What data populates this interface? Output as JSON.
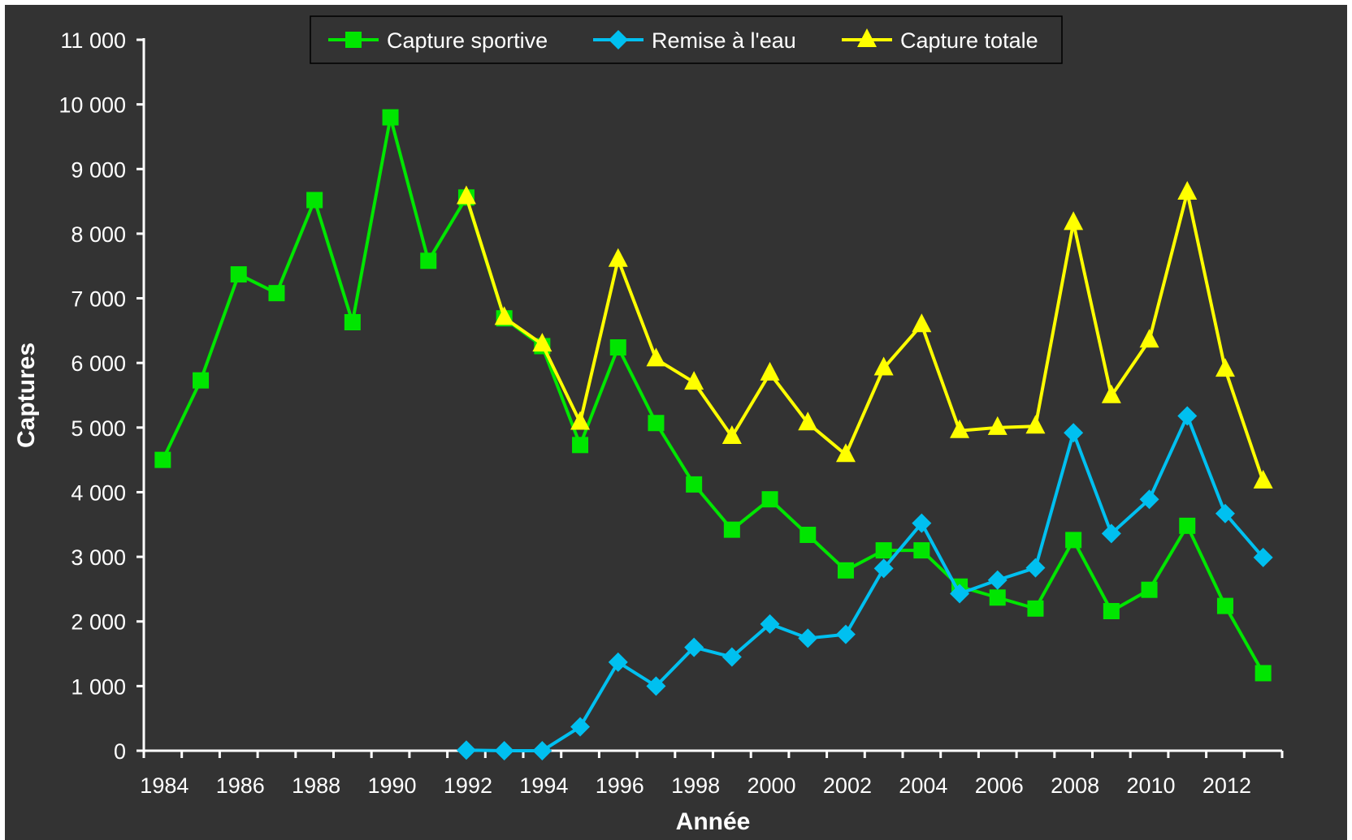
{
  "chart_data": {
    "type": "line",
    "title": "",
    "xlabel": "Année",
    "ylabel": "Captures",
    "xlim": [
      1983.5,
      2013.5
    ],
    "ylim": [
      0,
      11000
    ],
    "x_ticks": [
      1984,
      1986,
      1988,
      1990,
      1992,
      1994,
      1996,
      1998,
      2000,
      2002,
      2004,
      2006,
      2008,
      2010,
      2012
    ],
    "x_tick_labels": [
      "1984",
      "1986",
      "1988",
      "1990",
      "1992",
      "1994",
      "1996",
      "1998",
      "2000",
      "2002",
      "2004",
      "2006",
      "2008",
      "2010",
      "2012"
    ],
    "y_ticks": [
      0,
      1000,
      2000,
      3000,
      4000,
      5000,
      6000,
      7000,
      8000,
      9000,
      10000,
      11000
    ],
    "y_tick_labels": [
      "0",
      "1 000",
      "2 000",
      "3 000",
      "4 000",
      "5 000",
      "6 000",
      "7 000",
      "8 000",
      "9 000",
      "10 000",
      "11 000"
    ],
    "grid": false,
    "legend_position": "top-center",
    "background_color": "#333333",
    "axis_color": "#ffffff",
    "series": [
      {
        "name": "Capture sportive",
        "color": "#00e600",
        "marker": "square",
        "points": [
          [
            1984,
            4500
          ],
          [
            1985,
            5730
          ],
          [
            1986,
            7370
          ],
          [
            1987,
            7080
          ],
          [
            1988,
            8520
          ],
          [
            1989,
            6630
          ],
          [
            1990,
            9800
          ],
          [
            1991,
            7580
          ],
          [
            1992,
            8560
          ],
          [
            1993,
            6690
          ],
          [
            1994,
            6260
          ],
          [
            1995,
            4730
          ],
          [
            1996,
            6240
          ],
          [
            1997,
            5070
          ],
          [
            1998,
            4120
          ],
          [
            1999,
            3420
          ],
          [
            2000,
            3890
          ],
          [
            2001,
            3340
          ],
          [
            2002,
            2790
          ],
          [
            2003,
            3100
          ],
          [
            2004,
            3100
          ],
          [
            2005,
            2540
          ],
          [
            2006,
            2370
          ],
          [
            2007,
            2200
          ],
          [
            2008,
            3260
          ],
          [
            2009,
            2160
          ],
          [
            2010,
            2490
          ],
          [
            2011,
            3480
          ],
          [
            2012,
            2240
          ],
          [
            2013,
            1200
          ]
        ]
      },
      {
        "name": "Remise à l'eau",
        "color": "#00c0f0",
        "marker": "diamond",
        "points": [
          [
            1992,
            10
          ],
          [
            1993,
            0
          ],
          [
            1994,
            0
          ],
          [
            1995,
            370
          ],
          [
            1996,
            1370
          ],
          [
            1997,
            1000
          ],
          [
            1998,
            1600
          ],
          [
            1999,
            1450
          ],
          [
            2000,
            1960
          ],
          [
            2001,
            1740
          ],
          [
            2002,
            1800
          ],
          [
            2003,
            2820
          ],
          [
            2004,
            3520
          ],
          [
            2005,
            2430
          ],
          [
            2006,
            2640
          ],
          [
            2007,
            2830
          ],
          [
            2008,
            4920
          ],
          [
            2009,
            3360
          ],
          [
            2010,
            3890
          ],
          [
            2011,
            5180
          ],
          [
            2012,
            3670
          ],
          [
            2013,
            2990
          ]
        ]
      },
      {
        "name": "Capture totale",
        "color": "#ffff00",
        "marker": "triangle",
        "points": [
          [
            1992,
            8570
          ],
          [
            1993,
            6700
          ],
          [
            1994,
            6290
          ],
          [
            1995,
            5080
          ],
          [
            1996,
            7600
          ],
          [
            1997,
            6060
          ],
          [
            1998,
            5700
          ],
          [
            1999,
            4860
          ],
          [
            2000,
            5840
          ],
          [
            2001,
            5070
          ],
          [
            2002,
            4580
          ],
          [
            2003,
            5920
          ],
          [
            2004,
            6590
          ],
          [
            2005,
            4950
          ],
          [
            2006,
            5000
          ],
          [
            2007,
            5020
          ],
          [
            2008,
            8170
          ],
          [
            2009,
            5490
          ],
          [
            2010,
            6350
          ],
          [
            2011,
            8640
          ],
          [
            2012,
            5900
          ],
          [
            2013,
            4170
          ]
        ]
      }
    ]
  }
}
